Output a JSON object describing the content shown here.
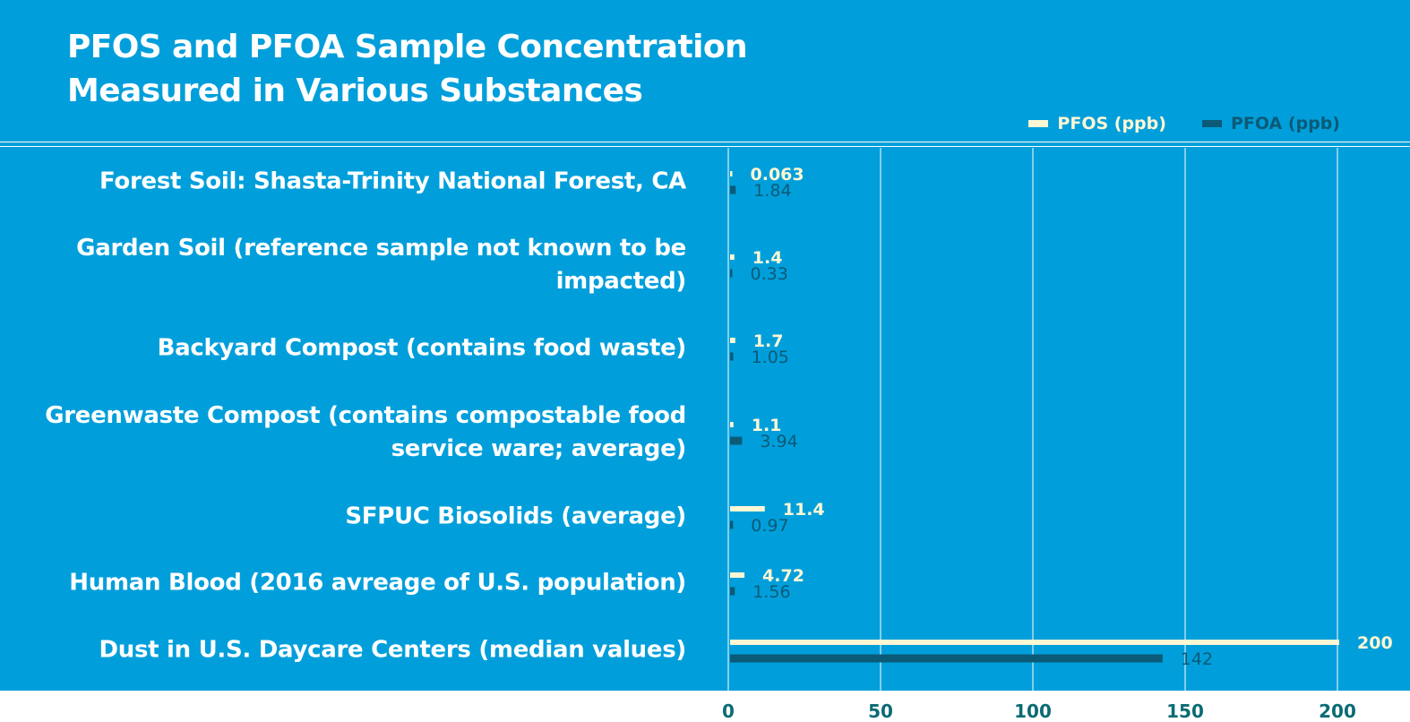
{
  "chart_data": {
    "type": "bar",
    "orientation": "horizontal",
    "title_lines": [
      "PFOS and PFOA Sample Concentration",
      "Measured in Various Substances"
    ],
    "categories": [
      "Forest Soil: Shasta-Trinity National Forest, CA",
      "Garden Soil (reference sample not known to be impacted)",
      "Backyard Compost (contains food waste)",
      "Greenwaste Compost (contains compostable food service ware; average)",
      "SFPUC Biosolids (average)",
      "Human Blood (2016 avreage of U.S. population)",
      "Dust in U.S. Daycare Centers (median values)"
    ],
    "series": [
      {
        "name": "PFOS (ppb)",
        "color": "#fdf7d4",
        "values": [
          0.063,
          1.4,
          1.7,
          1.1,
          11.4,
          4.72,
          200
        ],
        "labels": [
          "0.063",
          "1.4",
          "1.7",
          "1.1",
          "11.4",
          "4.72",
          "200"
        ]
      },
      {
        "name": "PFOA (ppb)",
        "color": "#0b5a77",
        "values": [
          1.84,
          0.33,
          1.05,
          3.94,
          0.97,
          1.56,
          142
        ],
        "labels": [
          "1.84",
          "0.33",
          "1.05",
          "3.94",
          "0.97",
          "1.56",
          "142"
        ]
      }
    ],
    "xlim": [
      0,
      200
    ],
    "xticks": [
      0,
      50,
      100,
      150,
      200
    ],
    "xtick_labels": [
      "0",
      "50",
      "100",
      "150",
      "200"
    ],
    "grid": "vertical",
    "legend_position": "top-right",
    "xlabel": "",
    "ylabel": ""
  },
  "colors": {
    "background": "#009fdb",
    "title": "#ffffff",
    "gridline": "#ffffff",
    "axis_labels": "#0b6b73"
  }
}
